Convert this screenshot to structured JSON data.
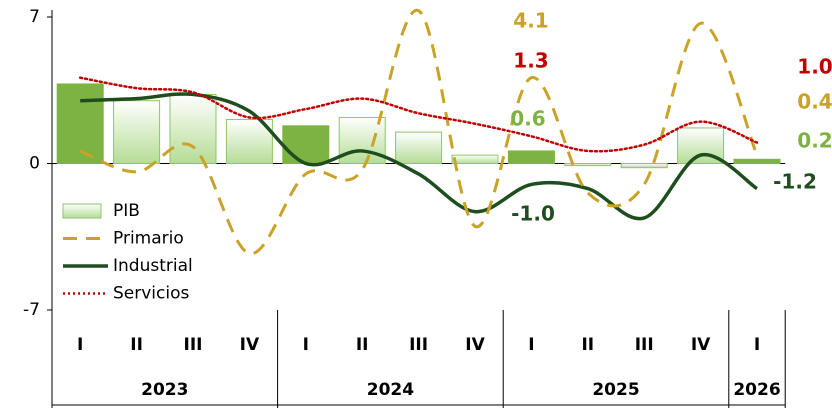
{
  "chart_data": {
    "type": "combo",
    "quarters": [
      "I",
      "II",
      "III",
      "IV",
      "I",
      "II",
      "III",
      "IV",
      "I",
      "II",
      "III",
      "IV",
      "I"
    ],
    "years": [
      {
        "label": "2023",
        "span": 4
      },
      {
        "label": "2024",
        "span": 4
      },
      {
        "label": "2025",
        "span": 4
      },
      {
        "label": "2026",
        "span": 1
      }
    ],
    "ylim": [
      -7,
      7
    ],
    "yticks": [
      -7,
      0,
      7
    ],
    "legend": "lower-left",
    "series": [
      {
        "name": "PIB",
        "kind": "bar",
        "color": "#c8e6b0",
        "colors": [
          "#7cb342",
          "#c8e6b0",
          "#c8e6b0",
          "#c8e6b0",
          "#7cb342",
          "#c8e6b0",
          "#c8e6b0",
          "#c8e6b0",
          "#7cb342",
          "#c8e6b0",
          "#c8e6b0",
          "#c8e6b0",
          "#7cb342"
        ],
        "values": [
          3.8,
          3.0,
          3.3,
          2.1,
          1.8,
          2.2,
          1.5,
          0.4,
          0.6,
          -0.1,
          -0.2,
          1.7,
          0.2
        ],
        "value_labels": [
          null,
          null,
          null,
          null,
          null,
          null,
          null,
          null,
          "0.6",
          null,
          null,
          null,
          "0.2"
        ],
        "label_color": "#7cb342"
      },
      {
        "name": "Primario",
        "kind": "dashed",
        "color": "#c9a227",
        "values": [
          0.6,
          -0.4,
          0.8,
          -4.3,
          -0.5,
          -0.3,
          7.3,
          -3.0,
          4.1,
          -1.4,
          -1.0,
          6.7,
          0.4
        ],
        "value_labels": [
          null,
          null,
          null,
          null,
          null,
          null,
          null,
          null,
          "4.1",
          null,
          null,
          null,
          "0.4"
        ],
        "label_color": "#c9a227"
      },
      {
        "name": "Industrial",
        "kind": "solid",
        "color": "#1e4d1e",
        "values": [
          3.0,
          3.1,
          3.3,
          2.5,
          0.0,
          0.6,
          -0.5,
          -2.3,
          -1.0,
          -1.2,
          -2.6,
          0.4,
          -1.2
        ],
        "value_labels": [
          null,
          null,
          null,
          null,
          null,
          null,
          null,
          null,
          "-1.0",
          null,
          null,
          null,
          "-1.2"
        ],
        "label_color": "#1e4d1e"
      },
      {
        "name": "Servicios",
        "kind": "dotted",
        "color": "#c00000",
        "values": [
          4.1,
          3.6,
          3.4,
          2.2,
          2.6,
          3.1,
          2.4,
          1.9,
          1.3,
          0.6,
          0.9,
          2.0,
          1.0
        ],
        "value_labels": [
          null,
          null,
          null,
          null,
          null,
          null,
          null,
          null,
          "1.3",
          null,
          null,
          null,
          "1.0"
        ],
        "label_color": "#c00000"
      }
    ]
  }
}
